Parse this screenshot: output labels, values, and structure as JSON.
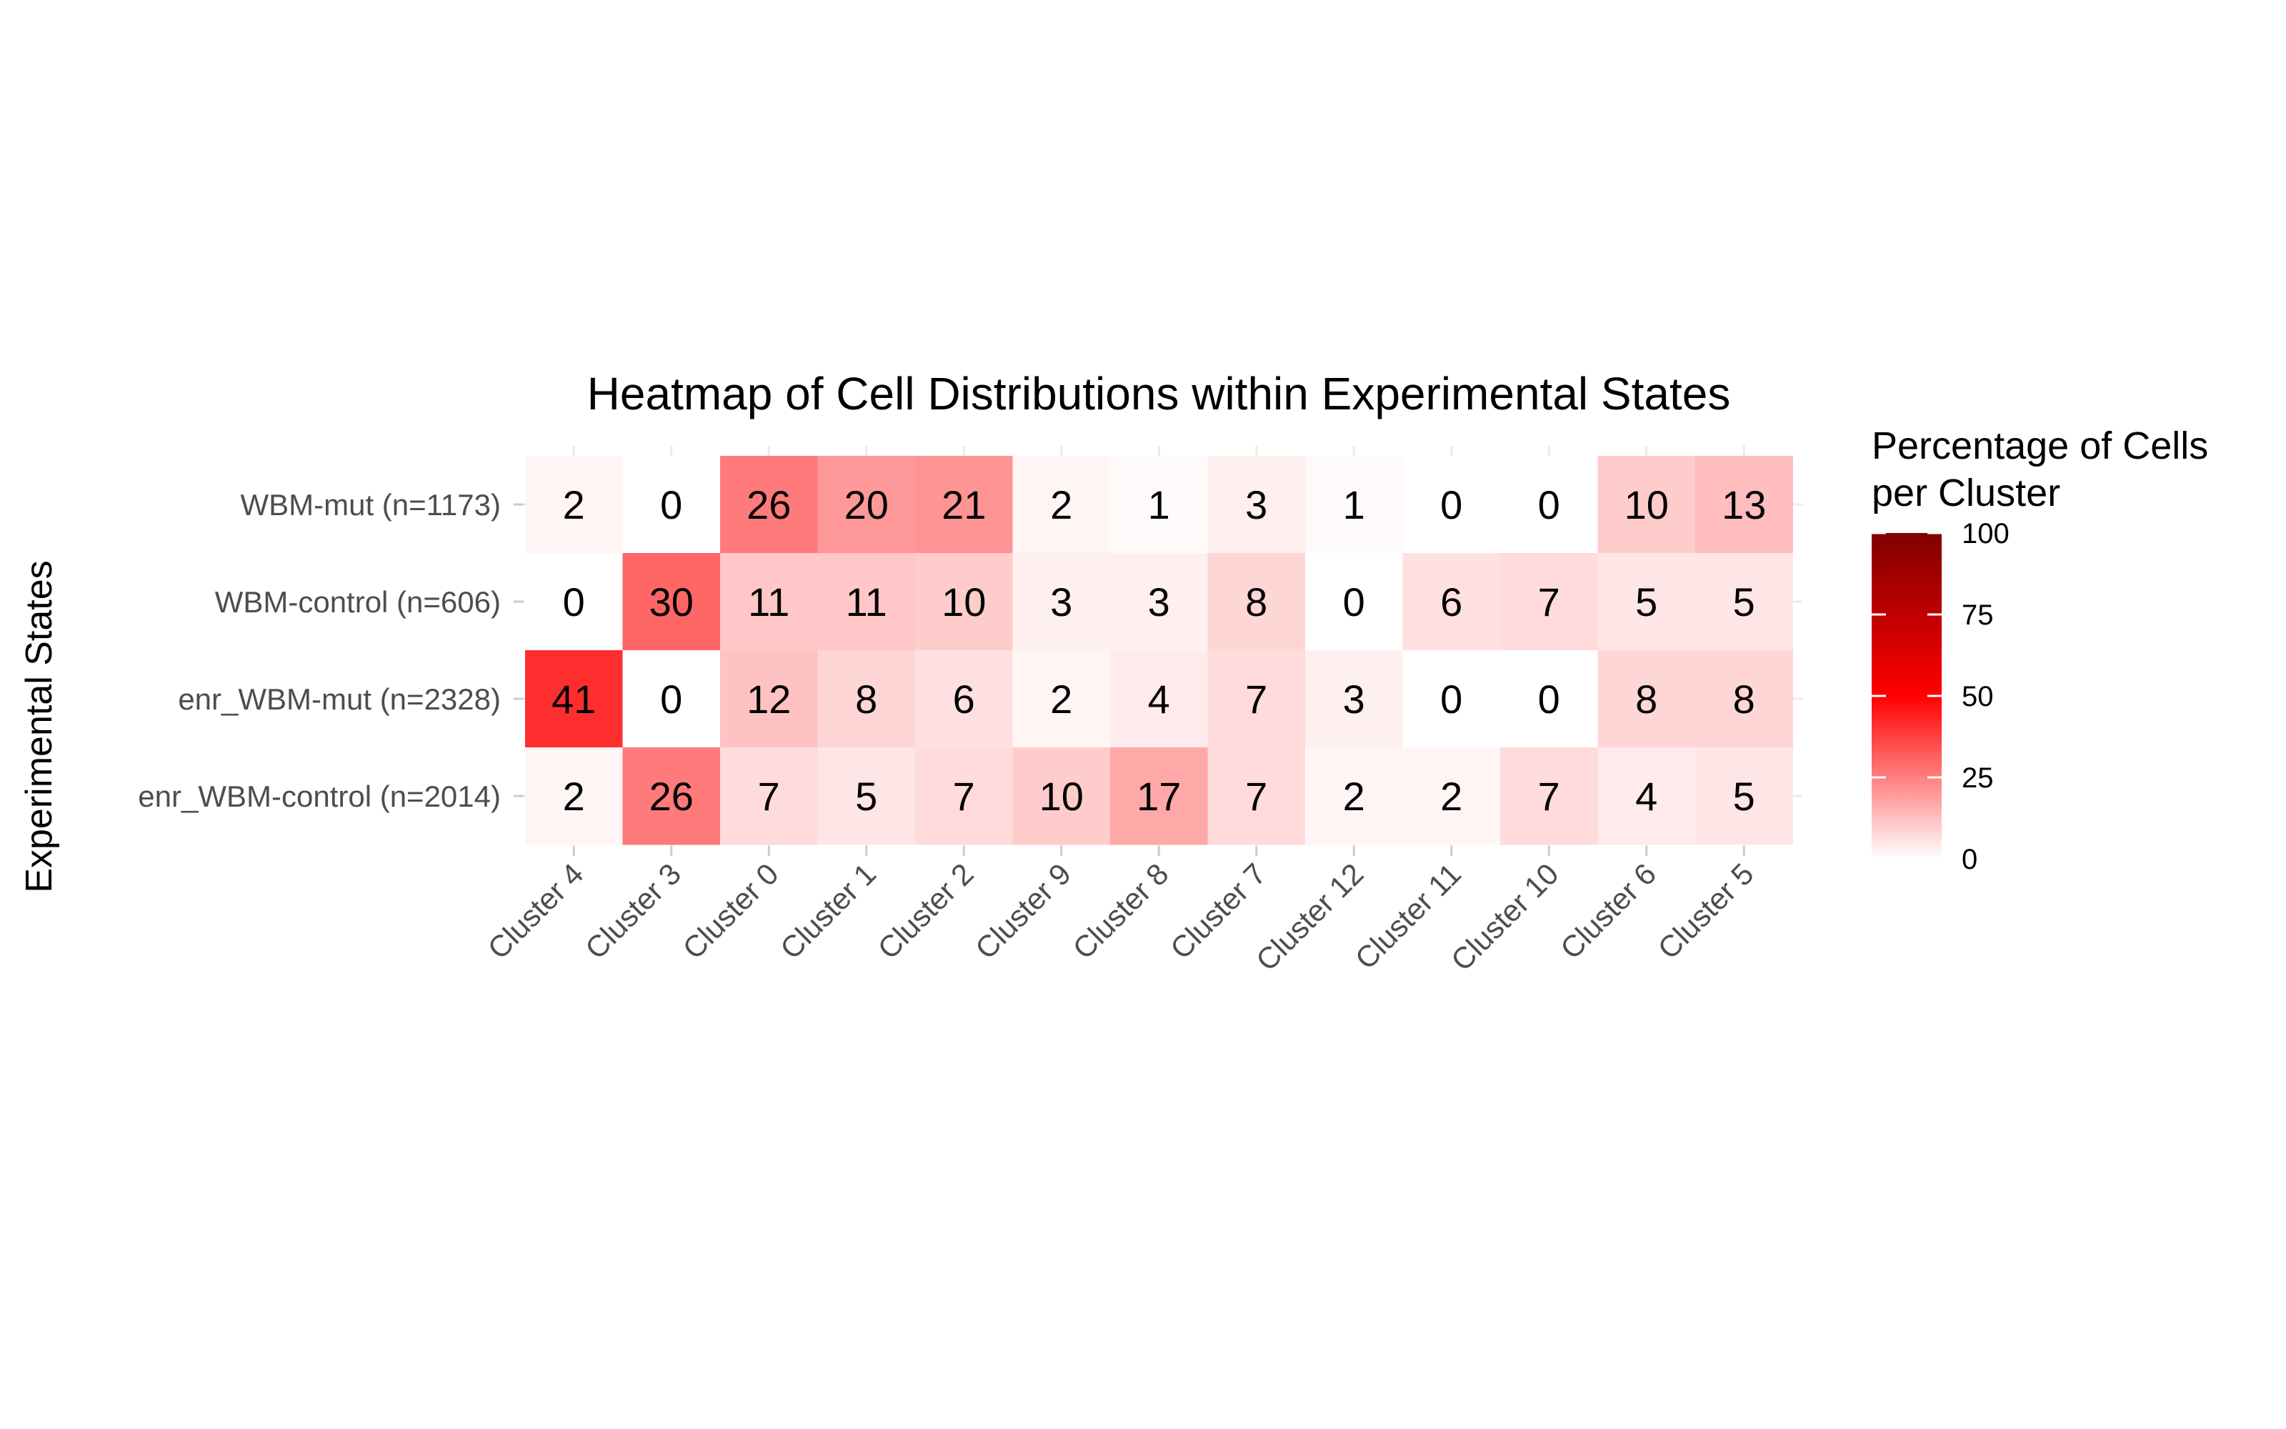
{
  "chart_data": {
    "type": "heatmap",
    "title": "Heatmap of Cell Distributions within Experimental States",
    "xlabel": "",
    "ylabel": "Experimental States",
    "columns": [
      "Cluster 4",
      "Cluster 3",
      "Cluster 0",
      "Cluster 1",
      "Cluster 2",
      "Cluster 9",
      "Cluster 8",
      "Cluster 7",
      "Cluster 12",
      "Cluster 11",
      "Cluster 10",
      "Cluster 6",
      "Cluster 5"
    ],
    "rows": [
      "WBM-mut (n=1173)",
      "WBM-control (n=606)",
      "enr_WBM-mut (n=2328)",
      "enr_WBM-control (n=2014)"
    ],
    "values": [
      [
        2,
        0,
        26,
        20,
        21,
        2,
        1,
        3,
        1,
        0,
        0,
        10,
        13
      ],
      [
        0,
        30,
        11,
        11,
        10,
        3,
        3,
        8,
        0,
        6,
        7,
        5,
        5
      ],
      [
        41,
        0,
        12,
        8,
        6,
        2,
        4,
        7,
        3,
        0,
        0,
        8,
        8
      ],
      [
        2,
        26,
        7,
        5,
        7,
        10,
        17,
        7,
        2,
        2,
        7,
        4,
        5
      ]
    ],
    "value_range": [
      0,
      100
    ],
    "legend": {
      "title_lines": [
        "Percentage of Cells",
        "per Cluster"
      ],
      "ticks": [
        0,
        25,
        50,
        75,
        100
      ],
      "placement": "right"
    },
    "color_scale": [
      {
        "stop": 0,
        "color": "#ffffff"
      },
      {
        "stop": 0.5,
        "color": "#ff0000"
      },
      {
        "stop": 1,
        "color": "#800000"
      }
    ]
  }
}
